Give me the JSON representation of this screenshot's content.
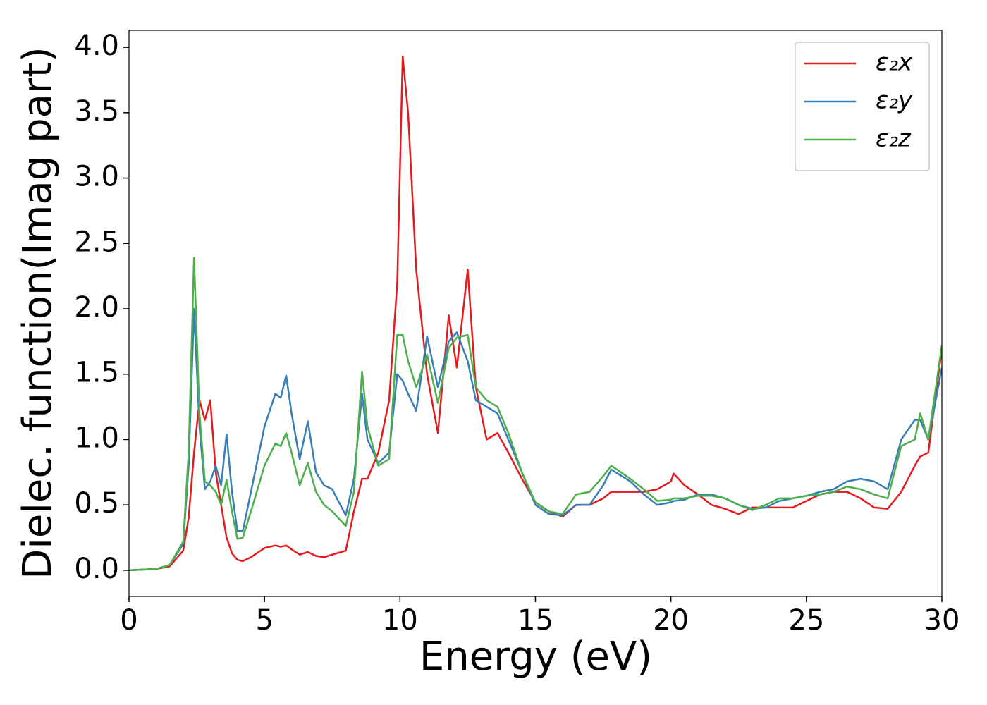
{
  "chart_data": {
    "type": "line",
    "xlabel": "Energy (eV)",
    "ylabel": "Dielec. function(Imag part)",
    "x": [
      0,
      1,
      1.5,
      2,
      2.2,
      2.4,
      2.6,
      2.8,
      3.0,
      3.2,
      3.4,
      3.6,
      3.8,
      4.0,
      4.2,
      4.5,
      5.0,
      5.4,
      5.6,
      5.8,
      6.0,
      6.3,
      6.6,
      6.9,
      7.2,
      7.5,
      8.0,
      8.3,
      8.6,
      8.8,
      9.2,
      9.6,
      9.9,
      10.1,
      10.3,
      10.6,
      11.0,
      11.4,
      11.8,
      12.1,
      12.5,
      12.8,
      13.2,
      13.6,
      14.0,
      14.5,
      15,
      15.5,
      16,
      16.5,
      17,
      17.5,
      17.8,
      18.5,
      19,
      19.5,
      20,
      20.1,
      20.5,
      21,
      21.5,
      22,
      22.5,
      23,
      23.5,
      24,
      24.5,
      25,
      25.5,
      26,
      26.5,
      27,
      27.5,
      28,
      28.5,
      29,
      29.2,
      29.5,
      30
    ],
    "series": [
      {
        "name": "ε₂x",
        "color": "#e41a1c",
        "values": [
          0,
          0.01,
          0.03,
          0.15,
          0.4,
          0.9,
          1.3,
          1.15,
          1.3,
          0.75,
          0.5,
          0.25,
          0.13,
          0.08,
          0.07,
          0.1,
          0.17,
          0.19,
          0.18,
          0.19,
          0.16,
          0.12,
          0.14,
          0.11,
          0.1,
          0.12,
          0.15,
          0.45,
          0.7,
          0.7,
          0.9,
          1.3,
          2.2,
          3.93,
          3.5,
          2.3,
          1.5,
          1.05,
          1.95,
          1.55,
          2.3,
          1.4,
          1.0,
          1.05,
          0.9,
          0.7,
          0.52,
          0.45,
          0.41,
          0.5,
          0.5,
          0.55,
          0.6,
          0.6,
          0.6,
          0.62,
          0.68,
          0.74,
          0.65,
          0.58,
          0.5,
          0.47,
          0.43,
          0.48,
          0.48,
          0.48,
          0.48,
          0.53,
          0.58,
          0.6,
          0.6,
          0.55,
          0.48,
          0.47,
          0.6,
          0.8,
          0.87,
          0.9,
          1.7
        ]
      },
      {
        "name": "ε₂y",
        "color": "#377eb8",
        "values": [
          0,
          0.01,
          0.04,
          0.2,
          0.8,
          2.0,
          1.1,
          0.62,
          0.68,
          0.8,
          0.65,
          1.04,
          0.6,
          0.3,
          0.3,
          0.6,
          1.1,
          1.35,
          1.32,
          1.49,
          1.2,
          0.85,
          1.14,
          0.75,
          0.65,
          0.62,
          0.42,
          0.7,
          1.35,
          1.0,
          0.82,
          0.9,
          1.5,
          1.45,
          1.35,
          1.22,
          1.79,
          1.4,
          1.75,
          1.82,
          1.6,
          1.3,
          1.25,
          1.2,
          1.0,
          0.75,
          0.5,
          0.43,
          0.42,
          0.5,
          0.5,
          0.65,
          0.77,
          0.68,
          0.58,
          0.5,
          0.52,
          0.53,
          0.54,
          0.58,
          0.58,
          0.55,
          0.5,
          0.47,
          0.48,
          0.53,
          0.55,
          0.57,
          0.6,
          0.62,
          0.68,
          0.7,
          0.68,
          0.62,
          1.0,
          1.15,
          1.15,
          1.0,
          1.55
        ]
      },
      {
        "name": "ε₂z",
        "color": "#4daf4a",
        "values": [
          0,
          0.01,
          0.04,
          0.22,
          0.9,
          2.39,
          1.2,
          0.68,
          0.65,
          0.6,
          0.5,
          0.69,
          0.45,
          0.24,
          0.25,
          0.45,
          0.8,
          0.97,
          0.95,
          1.05,
          0.9,
          0.65,
          0.82,
          0.6,
          0.5,
          0.45,
          0.34,
          0.6,
          1.52,
          1.1,
          0.8,
          0.85,
          1.8,
          1.8,
          1.6,
          1.4,
          1.65,
          1.28,
          1.7,
          1.78,
          1.8,
          1.4,
          1.3,
          1.25,
          1.05,
          0.75,
          0.52,
          0.45,
          0.43,
          0.58,
          0.6,
          0.72,
          0.8,
          0.7,
          0.62,
          0.53,
          0.54,
          0.55,
          0.55,
          0.57,
          0.57,
          0.55,
          0.5,
          0.46,
          0.5,
          0.55,
          0.55,
          0.57,
          0.58,
          0.6,
          0.64,
          0.62,
          0.58,
          0.55,
          0.95,
          1.0,
          1.2,
          1.0,
          1.72
        ]
      }
    ],
    "xlim": [
      0,
      30
    ],
    "xticks": [
      0,
      5,
      10,
      15,
      20,
      25,
      30
    ],
    "ylim": [
      -0.2,
      4.13
    ],
    "yticks": [
      {
        "value": 0,
        "label": "0.0"
      },
      0.5,
      {
        "value": 1,
        "label": "1.0"
      },
      1.5,
      {
        "value": 2,
        "label": "2.0"
      },
      2.5,
      {
        "value": 3,
        "label": "3.0"
      },
      3.5,
      {
        "value": 4,
        "label": "4.0"
      }
    ],
    "legend": "upper right"
  }
}
